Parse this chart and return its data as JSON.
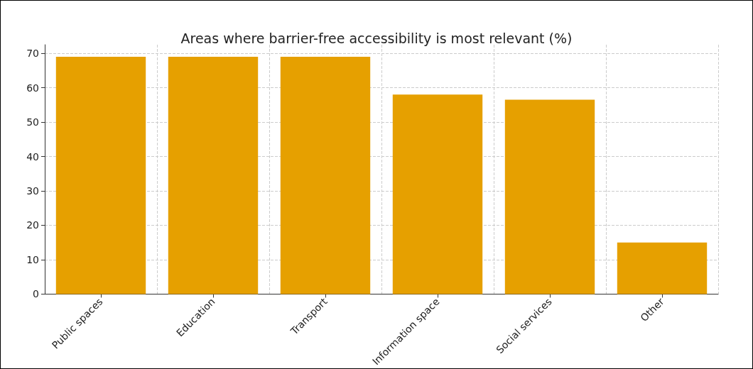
{
  "chart_data": {
    "type": "bar",
    "title": "Areas where barrier-free accessibility is most relevant (%)",
    "categories": [
      "Public spaces",
      "Education",
      "Transport",
      "Information space",
      "Social services",
      "Other"
    ],
    "values": [
      69,
      69,
      69,
      58,
      56.5,
      15
    ],
    "color": "#e6a000",
    "ylim": [
      0,
      72.5
    ],
    "yticks": [
      0,
      10,
      20,
      30,
      40,
      50,
      60,
      70
    ],
    "grid": true
  }
}
